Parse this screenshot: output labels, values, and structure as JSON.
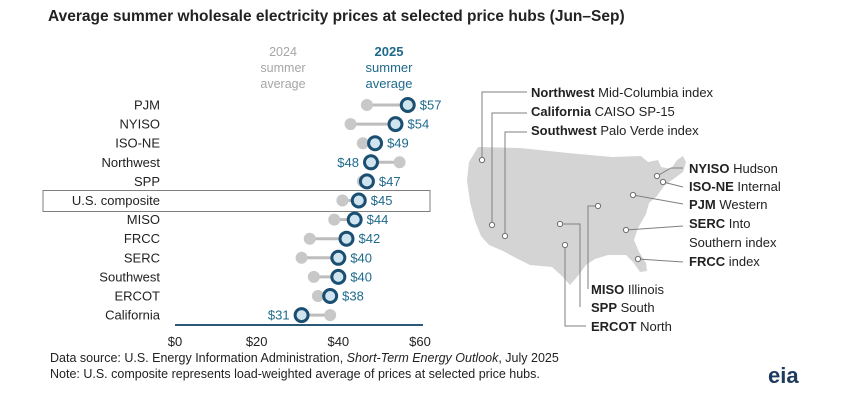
{
  "chart_data": {
    "type": "dumbbell",
    "title": "Average summer wholesale electricity prices at selected price hubs (Jun–Sep)",
    "series_labels": {
      "s2024": [
        "2024",
        "summer",
        "average"
      ],
      "s2025": [
        "2025",
        "summer",
        "average"
      ]
    },
    "categories": [
      "PJM",
      "NYISO",
      "ISO-NE",
      "Northwest",
      "SPP",
      "U.S. composite",
      "MISO",
      "FRCC",
      "SERC",
      "Southwest",
      "ERCOT",
      "California"
    ],
    "series": [
      {
        "name": "2024 summer average",
        "values": [
          47,
          43,
          46,
          55,
          46,
          41,
          39,
          33,
          31,
          34,
          35,
          38
        ]
      },
      {
        "name": "2025 summer average",
        "values": [
          57,
          54,
          49,
          48,
          47,
          45,
          44,
          42,
          40,
          40,
          38,
          31
        ]
      }
    ],
    "value_labels": [
      "$57",
      "$54",
      "$49",
      "$48",
      "$47",
      "$45",
      "$44",
      "$42",
      "$40",
      "$40",
      "$38",
      "$31"
    ],
    "highlighted_category": "U.S. composite",
    "xlim": [
      0,
      60
    ],
    "x_ticks": [
      0,
      20,
      40,
      60
    ],
    "x_tick_labels": [
      "$0",
      "$20",
      "$40",
      "$60"
    ],
    "colors": {
      "s2024": "#c8c8c8",
      "s2025_fill": "#cfe4ef",
      "s2025_edge": "#1b4f72",
      "label": "#1f6a8c",
      "map": "#d4d4d4"
    }
  },
  "map_labels": [
    {
      "key": "nw",
      "region": "Northwest",
      "index": "Mid-Columbia index"
    },
    {
      "key": "ca",
      "region": "California",
      "index": "CAISO SP-15"
    },
    {
      "key": "sw",
      "region": "Southwest",
      "index": "Palo Verde index"
    },
    {
      "key": "ny",
      "region": "NYISO",
      "index": "Hudson"
    },
    {
      "key": "ne",
      "region": "ISO-NE",
      "index": "Internal"
    },
    {
      "key": "pjm",
      "region": "PJM",
      "index": "Western"
    },
    {
      "key": "serc",
      "region": "SERC",
      "index": "Into",
      "extra": "Southern index"
    },
    {
      "key": "fl",
      "region": "FRCC",
      "index": "index"
    },
    {
      "key": "miso",
      "region": "MISO",
      "index": "Illinois"
    },
    {
      "key": "spp",
      "region": "SPP",
      "index": "South"
    },
    {
      "key": "ercot",
      "region": "ERCOT",
      "index": "North"
    }
  ],
  "footnotes": {
    "source_prefix": "Data source: U.S. Energy Information Administration, ",
    "source_italic": "Short-Term Energy Outlook",
    "source_suffix": ", July 2025",
    "note": "Note: U.S. composite represents load-weighted average of prices at selected price hubs."
  },
  "logo": "eia"
}
